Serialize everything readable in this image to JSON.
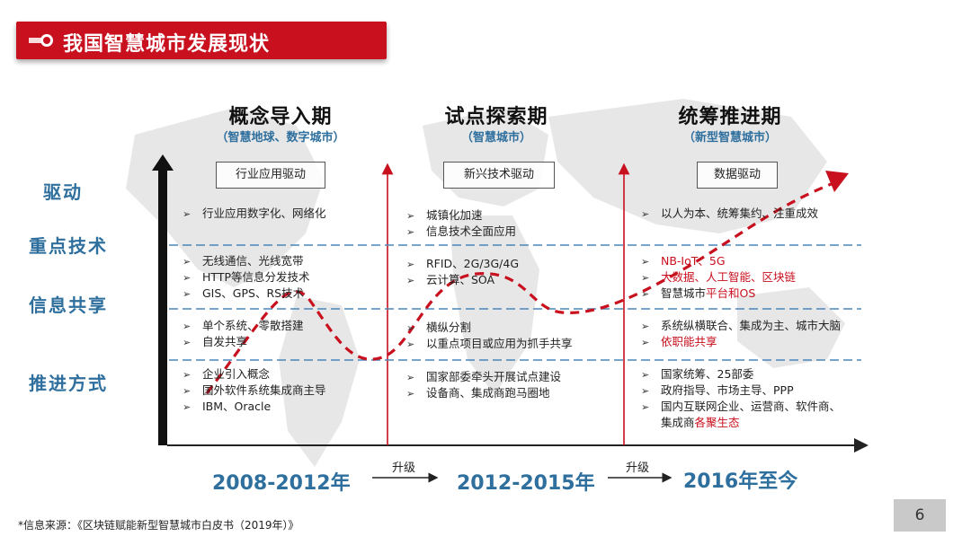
{
  "header": {
    "title": "我国智慧城市发展现状"
  },
  "phases": [
    {
      "title": "概念导入期",
      "subtitle": "（智慧地球、数字城市）",
      "driver": "行业应用驱动",
      "period": "2008-2012年"
    },
    {
      "title": "试点探索期",
      "subtitle": "（智慧城市）",
      "driver": "新兴技术驱动",
      "period": "2012-2015年"
    },
    {
      "title": "统筹推进期",
      "subtitle": "（新型智慧城市）",
      "driver": "数据驱动",
      "period": "2016年至今"
    }
  ],
  "row_labels": [
    "驱动",
    "重点技术",
    "信息共享",
    "推进方式"
  ],
  "upgrade_label": "升级",
  "bullet": "➢",
  "cells": {
    "col1": {
      "focus": [
        "行业应用数字化、网络化"
      ],
      "tech": [
        "无线通信、光线宽带",
        "HTTP等信息分发技术",
        "GIS、GPS、RS技术"
      ],
      "share": [
        "单个系统、零散搭建",
        "自发共享"
      ],
      "method": [
        "企业引入概念",
        "国外软件系统集成商主导",
        "IBM、Oracle"
      ]
    },
    "col2": {
      "focus": [
        "城镇化加速",
        "信息技术全面应用"
      ],
      "tech": [
        "RFID、2G/3G/4G",
        "云计算、SOA"
      ],
      "share": [
        "横纵分割",
        "以重点项目或应用为抓手共享"
      ],
      "method": [
        "国家部委牵头开展试点建设",
        "设备商、集成商跑马圈地"
      ]
    },
    "col3": {
      "focus": [
        "以人为本、统筹集约、注重成效"
      ],
      "tech": [
        "NB-IoT、5G",
        "大数据、人工智能、区块链",
        "智慧城市",
        "平台和OS"
      ],
      "share": [
        "系统纵横联合、集成为主、城市大脑",
        "依职能共享"
      ],
      "method": [
        "国家统筹、25部委",
        "政府指导、市场主导、PPP",
        "国内互联网企业、运营商、软件商、",
        "集成商",
        "各聚生态"
      ]
    }
  },
  "footer": "*信息来源：《区块链赋能新型智慧城市白皮书（2019年）》",
  "page_number": "6",
  "colors": {
    "accent_red": "#c8101e",
    "label_blue": "#2e6f9e",
    "divider_blue": "#4a86b8"
  }
}
